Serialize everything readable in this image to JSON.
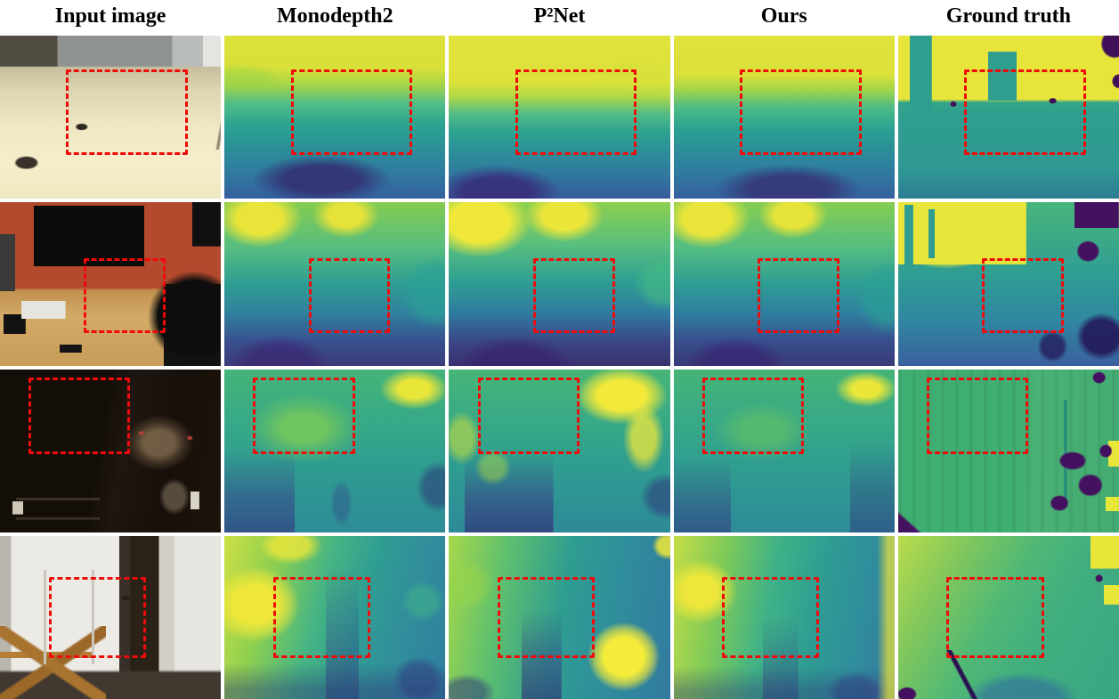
{
  "figure": {
    "type": "qualitative-depth-comparison",
    "columns": [
      {
        "label": "Input image"
      },
      {
        "label": "Monodepth2"
      },
      {
        "label": "P²Net"
      },
      {
        "label": "Ours"
      },
      {
        "label": "Ground truth"
      }
    ],
    "row_count": 4,
    "colors": {
      "highlight_box": "#ff0000",
      "highlight_style": "dashed",
      "depth_colormap": [
        "#440154",
        "#3b528b",
        "#21918c",
        "#5ec962",
        "#fde725"
      ],
      "background": "#ffffff"
    }
  }
}
